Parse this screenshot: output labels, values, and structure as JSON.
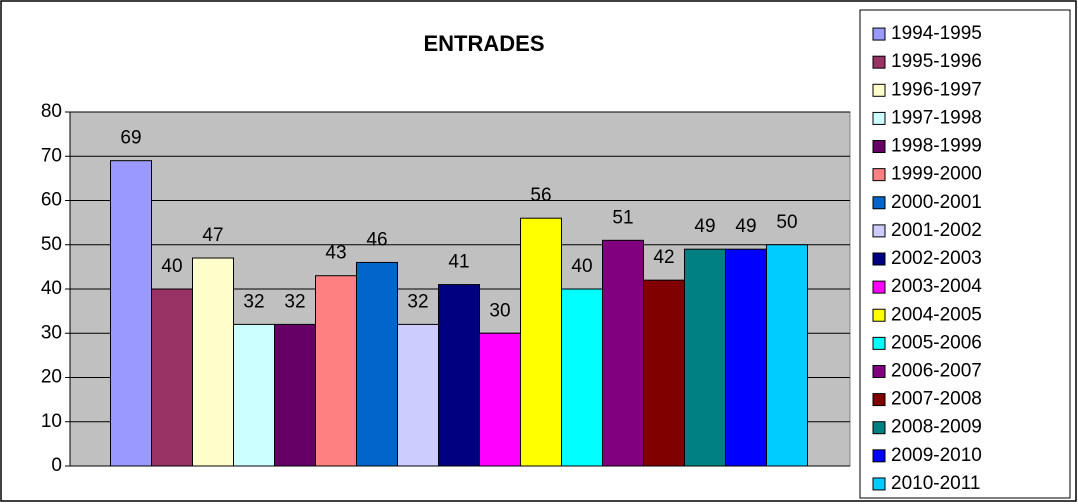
{
  "chart_data": {
    "type": "bar",
    "title": "ENTRADES",
    "categories": [
      null
    ],
    "series": [
      {
        "name": "1994-1995",
        "color": "#9999ff",
        "values": [
          69
        ]
      },
      {
        "name": "1995-1996",
        "color": "#993366",
        "values": [
          40
        ]
      },
      {
        "name": "1996-1997",
        "color": "#ffffcc",
        "values": [
          47
        ]
      },
      {
        "name": "1997-1998",
        "color": "#ccffff",
        "values": [
          32
        ]
      },
      {
        "name": "1998-1999",
        "color": "#660066",
        "values": [
          32
        ]
      },
      {
        "name": "1999-2000",
        "color": "#ff8080",
        "values": [
          43
        ]
      },
      {
        "name": "2000-2001",
        "color": "#0066cc",
        "values": [
          46
        ]
      },
      {
        "name": "2001-2002",
        "color": "#ccccff",
        "values": [
          32
        ]
      },
      {
        "name": "2002-2003",
        "color": "#000080",
        "values": [
          41
        ]
      },
      {
        "name": "2003-2004",
        "color": "#ff00ff",
        "values": [
          30
        ]
      },
      {
        "name": "2004-2005",
        "color": "#ffff00",
        "values": [
          56
        ]
      },
      {
        "name": "2005-2006",
        "color": "#00ffff",
        "values": [
          40
        ]
      },
      {
        "name": "2006-2007",
        "color": "#800080",
        "values": [
          51
        ]
      },
      {
        "name": "2007-2008",
        "color": "#800000",
        "values": [
          42
        ]
      },
      {
        "name": "2008-2009",
        "color": "#008080",
        "values": [
          49
        ]
      },
      {
        "name": "2009-2010",
        "color": "#0000ff",
        "values": [
          49
        ]
      },
      {
        "name": "2010-2011",
        "color": "#00ccff",
        "values": [
          50
        ]
      }
    ],
    "ylim": [
      0,
      80
    ],
    "yticks": [
      0,
      10,
      20,
      30,
      40,
      50,
      60,
      70,
      80
    ],
    "grid": true,
    "legend": "right",
    "plot_background": "#c0c0c0"
  }
}
